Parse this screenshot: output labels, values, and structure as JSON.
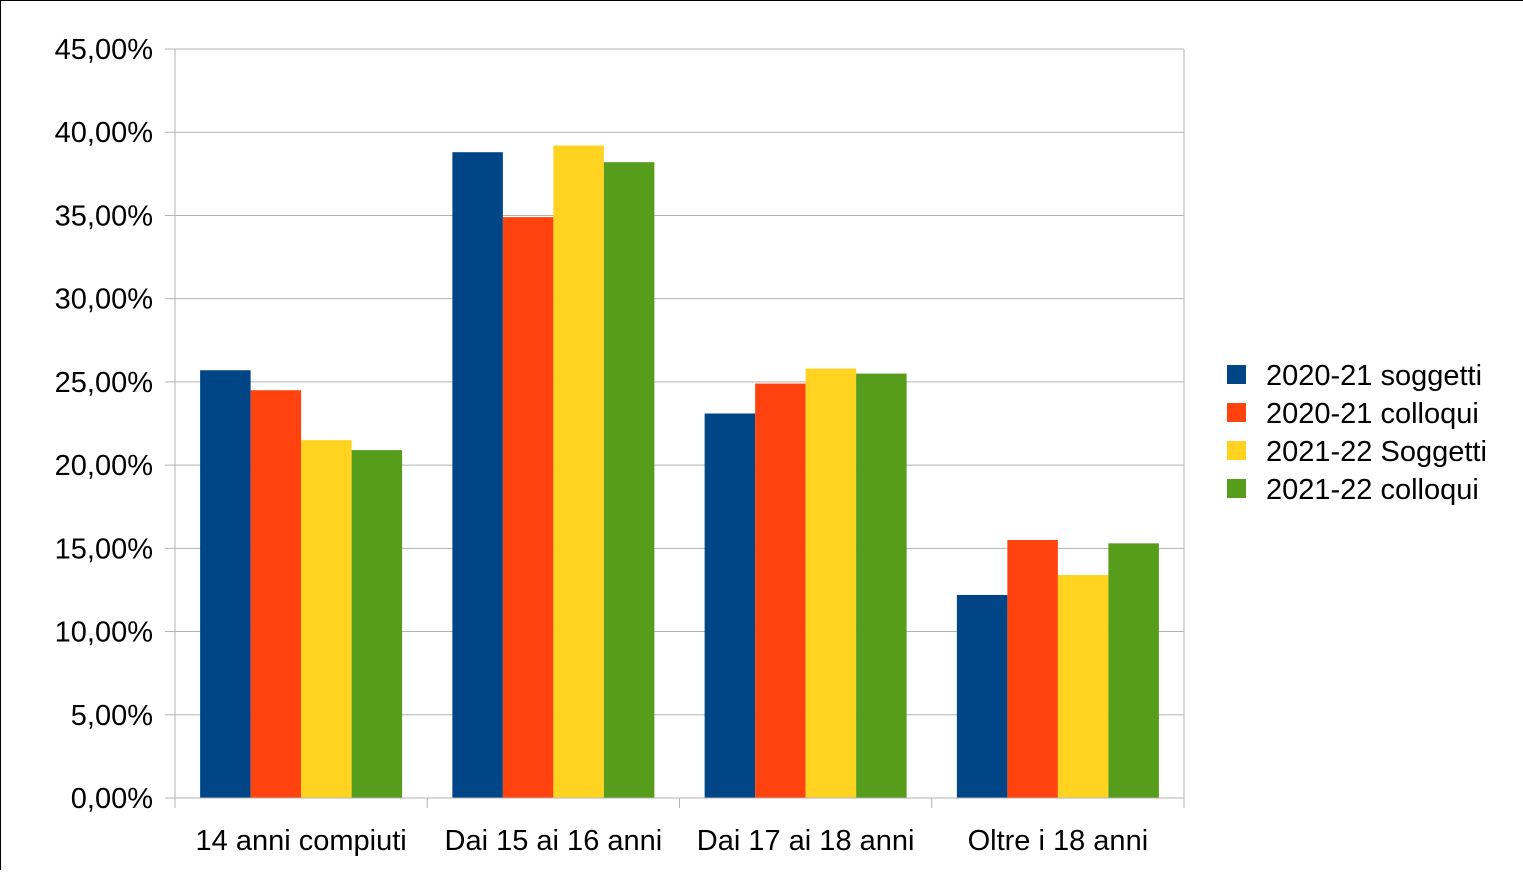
{
  "chart_data": {
    "type": "bar",
    "title": "",
    "xlabel": "",
    "ylabel": "",
    "categories": [
      "14 anni compiuti",
      "Dai 15 ai 16 anni",
      "Dai 17 ai 18 anni",
      "Oltre i 18 anni"
    ],
    "series": [
      {
        "name": "2020-21 soggetti",
        "color": "#004586",
        "values": [
          25.7,
          38.8,
          23.1,
          12.2
        ]
      },
      {
        "name": "2020-21 colloqui",
        "color": "#ff420e",
        "values": [
          24.5,
          34.9,
          24.9,
          15.5
        ]
      },
      {
        "name": "2021-22 Soggetti",
        "color": "#ffd320",
        "values": [
          21.5,
          39.2,
          25.8,
          13.4
        ]
      },
      {
        "name": "2021-22 colloqui",
        "color": "#579d1c",
        "values": [
          20.9,
          38.2,
          25.5,
          15.3
        ]
      }
    ],
    "ylim": [
      0,
      45
    ],
    "yticks": [
      0,
      5,
      10,
      15,
      20,
      25,
      30,
      35,
      40,
      45
    ],
    "ytick_labels": [
      "0,00%",
      "5,00%",
      "10,00%",
      "15,00%",
      "20,00%",
      "25,00%",
      "30,00%",
      "35,00%",
      "40,00%",
      "45,00%"
    ],
    "grid": true,
    "legend_position": "right"
  }
}
